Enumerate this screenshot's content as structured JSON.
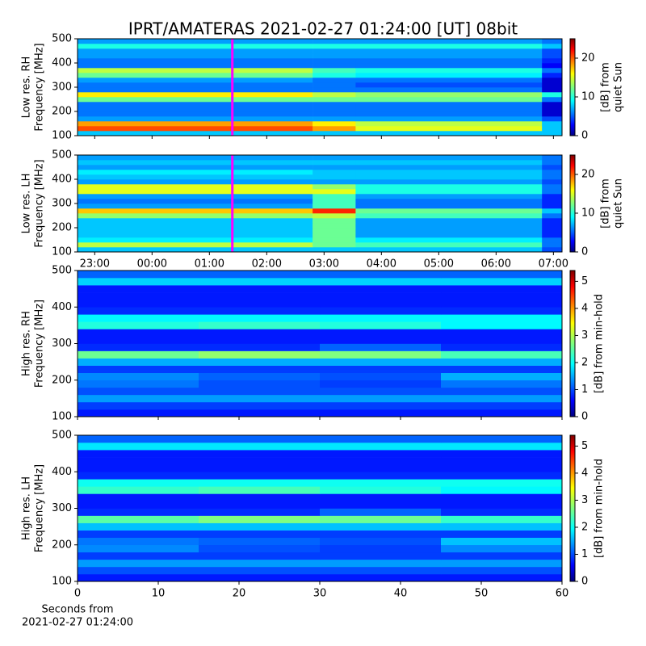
{
  "title": "IPRT/AMATERAS 2021-02-27 01:24:00 [UT]   08bit",
  "chart_data": [
    {
      "type": "heatmap",
      "ylabel": [
        "Low res. RH",
        "Frequency [MHz]"
      ],
      "colorbar_label": [
        "[dB] from",
        "quiet Sun"
      ],
      "xlim": [
        -1.3,
        7.15
      ],
      "ylim": [
        100,
        500
      ],
      "yticks": [
        100,
        200,
        300,
        400,
        500
      ],
      "clim": [
        0,
        25
      ],
      "cticks": [
        0,
        10,
        20
      ],
      "colormap": "jet",
      "marker_x": 1.4,
      "marker_color": "#ff00ff",
      "x_bins": [
        -1.3,
        2.8,
        3.55,
        6.8,
        7.15
      ],
      "y_bins": [
        100,
        120,
        140,
        160,
        180,
        200,
        220,
        240,
        260,
        280,
        300,
        320,
        340,
        360,
        380,
        400,
        420,
        440,
        460,
        480,
        500
      ],
      "z": [
        [
          8,
          8,
          8,
          8
        ],
        [
          20,
          18,
          15,
          8
        ],
        [
          18,
          16,
          14,
          8
        ],
        [
          7,
          7,
          7,
          5
        ],
        [
          6,
          6,
          6,
          2
        ],
        [
          6,
          6,
          6,
          2
        ],
        [
          6,
          6,
          6,
          2
        ],
        [
          12,
          12,
          12,
          6
        ],
        [
          16,
          14,
          13,
          10
        ],
        [
          6,
          6,
          6,
          2
        ],
        [
          6,
          6,
          5,
          2
        ],
        [
          7,
          6,
          6,
          2
        ],
        [
          12,
          10,
          9,
          4
        ],
        [
          14,
          11,
          10,
          6
        ],
        [
          6,
          6,
          6,
          3
        ],
        [
          6,
          6,
          6,
          4
        ],
        [
          7,
          7,
          7,
          5
        ],
        [
          7,
          7,
          7,
          5
        ],
        [
          10,
          10,
          10,
          8
        ],
        [
          7,
          7,
          7,
          6
        ]
      ]
    },
    {
      "type": "heatmap",
      "ylabel": [
        "Low res. LH",
        "Frequency [MHz]"
      ],
      "colorbar_label": [
        "[dB] from",
        "quiet Sun"
      ],
      "xlim": [
        -1.3,
        7.15
      ],
      "ylim": [
        100,
        500
      ],
      "yticks": [
        100,
        200,
        300,
        400,
        500
      ],
      "xticks": [
        {
          "value": -1,
          "label": "23:00"
        },
        {
          "value": 0,
          "label": "00:00"
        },
        {
          "value": 1,
          "label": "01:00"
        },
        {
          "value": 2,
          "label": "02:00"
        },
        {
          "value": 3,
          "label": "03:00"
        },
        {
          "value": 4,
          "label": "04:00"
        },
        {
          "value": 5,
          "label": "05:00"
        },
        {
          "value": 6,
          "label": "06:00"
        },
        {
          "value": 7,
          "label": "07:00"
        }
      ],
      "clim": [
        0,
        25
      ],
      "cticks": [
        0,
        10,
        20
      ],
      "colormap": "jet",
      "marker_x": 1.4,
      "marker_color": "#ff00ff",
      "x_bins": [
        -1.3,
        2.8,
        3.55,
        6.8,
        7.15
      ],
      "y_bins": [
        100,
        120,
        140,
        160,
        180,
        200,
        220,
        240,
        260,
        280,
        300,
        320,
        340,
        360,
        380,
        400,
        420,
        440,
        460,
        480,
        500
      ],
      "z": [
        [
          8,
          8,
          8,
          5
        ],
        [
          14,
          12,
          11,
          6
        ],
        [
          9,
          12,
          9,
          6
        ],
        [
          8,
          12,
          7,
          4
        ],
        [
          8,
          12,
          7,
          4
        ],
        [
          8,
          12,
          7,
          4
        ],
        [
          8,
          12,
          7,
          4
        ],
        [
          13,
          14,
          11,
          6
        ],
        [
          17,
          21,
          12,
          8
        ],
        [
          7,
          11,
          6,
          4
        ],
        [
          6,
          11,
          6,
          4
        ],
        [
          7,
          11,
          7,
          4
        ],
        [
          15,
          15,
          10,
          6
        ],
        [
          15,
          13,
          10,
          6
        ],
        [
          7,
          7,
          7,
          5
        ],
        [
          8,
          8,
          8,
          6
        ],
        [
          9,
          8,
          8,
          6
        ],
        [
          7,
          7,
          7,
          5
        ],
        [
          8,
          8,
          8,
          6
        ],
        [
          7,
          7,
          7,
          6
        ]
      ]
    },
    {
      "type": "heatmap",
      "ylabel": [
        "High res. RH",
        "Frequency [MHz]"
      ],
      "colorbar_label": [
        "[dB] from min-hold"
      ],
      "xlim": [
        0,
        60
      ],
      "ylim": [
        100,
        500
      ],
      "yticks": [
        100,
        200,
        300,
        400,
        500
      ],
      "clim": [
        0,
        5.4
      ],
      "cticks": [
        0,
        1,
        2,
        3,
        4,
        5
      ],
      "colormap": "jet",
      "x_bins": [
        0,
        15,
        30,
        45,
        60
      ],
      "y_bins": [
        100,
        120,
        140,
        160,
        180,
        200,
        220,
        240,
        260,
        280,
        300,
        320,
        340,
        360,
        380,
        400,
        420,
        440,
        460,
        480,
        500
      ],
      "z": [
        [
          0.8,
          0.8,
          0.8,
          0.8
        ],
        [
          1.0,
          1.0,
          1.0,
          1.0
        ],
        [
          1.5,
          1.5,
          1.5,
          1.5
        ],
        [
          1.1,
          1.1,
          1.1,
          1.1
        ],
        [
          1.3,
          1.1,
          1.0,
          1.3
        ],
        [
          1.4,
          1.2,
          1.1,
          1.6
        ],
        [
          1.0,
          1.0,
          1.0,
          1.0
        ],
        [
          1.6,
          1.6,
          1.6,
          1.6
        ],
        [
          2.6,
          2.8,
          2.7,
          2.4
        ],
        [
          0.9,
          0.9,
          1.2,
          0.9
        ],
        [
          0.8,
          0.8,
          0.8,
          0.8
        ],
        [
          0.8,
          0.8,
          0.8,
          0.8
        ],
        [
          2.2,
          2.3,
          2.2,
          2.0
        ],
        [
          2.0,
          2.0,
          2.0,
          2.0
        ],
        [
          0.9,
          0.9,
          0.9,
          0.9
        ],
        [
          0.8,
          0.8,
          0.8,
          0.8
        ],
        [
          0.8,
          0.8,
          0.8,
          0.8
        ],
        [
          0.8,
          0.8,
          0.8,
          0.8
        ],
        [
          1.8,
          1.8,
          1.8,
          1.8
        ],
        [
          1.2,
          1.2,
          1.2,
          1.2
        ]
      ]
    },
    {
      "type": "heatmap",
      "ylabel": [
        "High res. LH",
        "Frequency [MHz]"
      ],
      "colorbar_label": [
        "[dB] from min-hold"
      ],
      "xlabel": [
        "Seconds from",
        "2021-02-27 01:24:00"
      ],
      "xlim": [
        0,
        60
      ],
      "ylim": [
        100,
        500
      ],
      "yticks": [
        100,
        200,
        300,
        400,
        500
      ],
      "xticks": [
        0,
        10,
        20,
        30,
        40,
        50,
        60
      ],
      "clim": [
        0,
        5.4
      ],
      "cticks": [
        0,
        1,
        2,
        3,
        4,
        5
      ],
      "colormap": "jet",
      "x_bins": [
        0,
        15,
        30,
        45,
        60
      ],
      "y_bins": [
        100,
        120,
        140,
        160,
        180,
        200,
        220,
        240,
        260,
        280,
        300,
        320,
        340,
        360,
        380,
        400,
        420,
        440,
        460,
        480,
        500
      ],
      "z": [
        [
          0.8,
          0.8,
          0.8,
          0.8
        ],
        [
          1.1,
          1.1,
          1.1,
          1.1
        ],
        [
          1.5,
          1.5,
          1.5,
          1.5
        ],
        [
          1.0,
          1.0,
          1.0,
          1.0
        ],
        [
          1.4,
          1.1,
          1.0,
          1.4
        ],
        [
          1.3,
          1.2,
          1.1,
          1.7
        ],
        [
          1.0,
          1.0,
          1.0,
          1.0
        ],
        [
          1.7,
          1.7,
          1.7,
          1.7
        ],
        [
          2.5,
          2.7,
          2.6,
          2.3
        ],
        [
          0.9,
          0.9,
          1.2,
          0.9
        ],
        [
          0.8,
          0.8,
          0.8,
          0.8
        ],
        [
          0.8,
          0.8,
          0.8,
          0.8
        ],
        [
          2.3,
          2.4,
          2.2,
          2.0
        ],
        [
          2.1,
          2.1,
          2.1,
          2.1
        ],
        [
          0.9,
          0.9,
          0.9,
          0.9
        ],
        [
          0.8,
          0.8,
          0.8,
          0.8
        ],
        [
          0.8,
          0.8,
          0.8,
          0.8
        ],
        [
          0.8,
          0.8,
          0.8,
          0.8
        ],
        [
          1.9,
          1.9,
          1.9,
          1.9
        ],
        [
          1.2,
          1.2,
          1.2,
          1.2
        ]
      ]
    }
  ]
}
